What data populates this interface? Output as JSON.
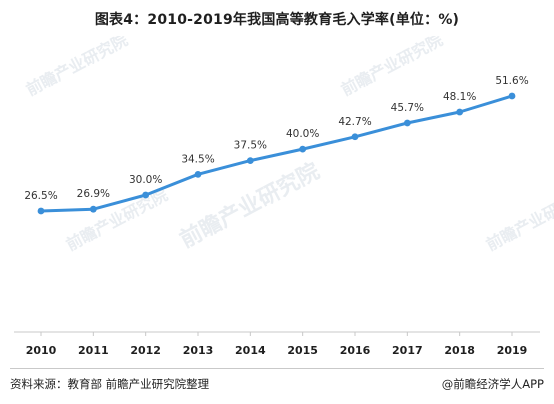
{
  "title": "图表4：2010-2019年我国高等教育毛入学率(单位：%)",
  "watermark": "前瞻产业研究院",
  "source": "资料来源：教育部 前瞻产业研究院整理",
  "credit": "@前瞻经济学人APP",
  "colors": {
    "line": "#3a8fd9",
    "axis": "#c8c8c8",
    "watermark": "#e9edf1"
  },
  "chart_data": {
    "type": "line",
    "title": "图表4：2010-2019年我国高等教育毛入学率(单位：%)",
    "xlabel": "",
    "ylabel": "",
    "categories": [
      "2010",
      "2011",
      "2012",
      "2013",
      "2014",
      "2015",
      "2016",
      "2017",
      "2018",
      "2019"
    ],
    "series": [
      {
        "values": [
          26.5,
          26.9,
          30.0,
          34.5,
          37.5,
          40.0,
          42.7,
          45.7,
          48.1,
          51.6
        ],
        "labels": [
          "26.5%",
          "26.9%",
          "30.0%",
          "34.5%",
          "37.5%",
          "40.0%",
          "42.7%",
          "45.7%",
          "48.1%",
          "51.6%"
        ]
      }
    ],
    "ylim": [
      0,
      60
    ],
    "grid": false,
    "legend": "none"
  }
}
